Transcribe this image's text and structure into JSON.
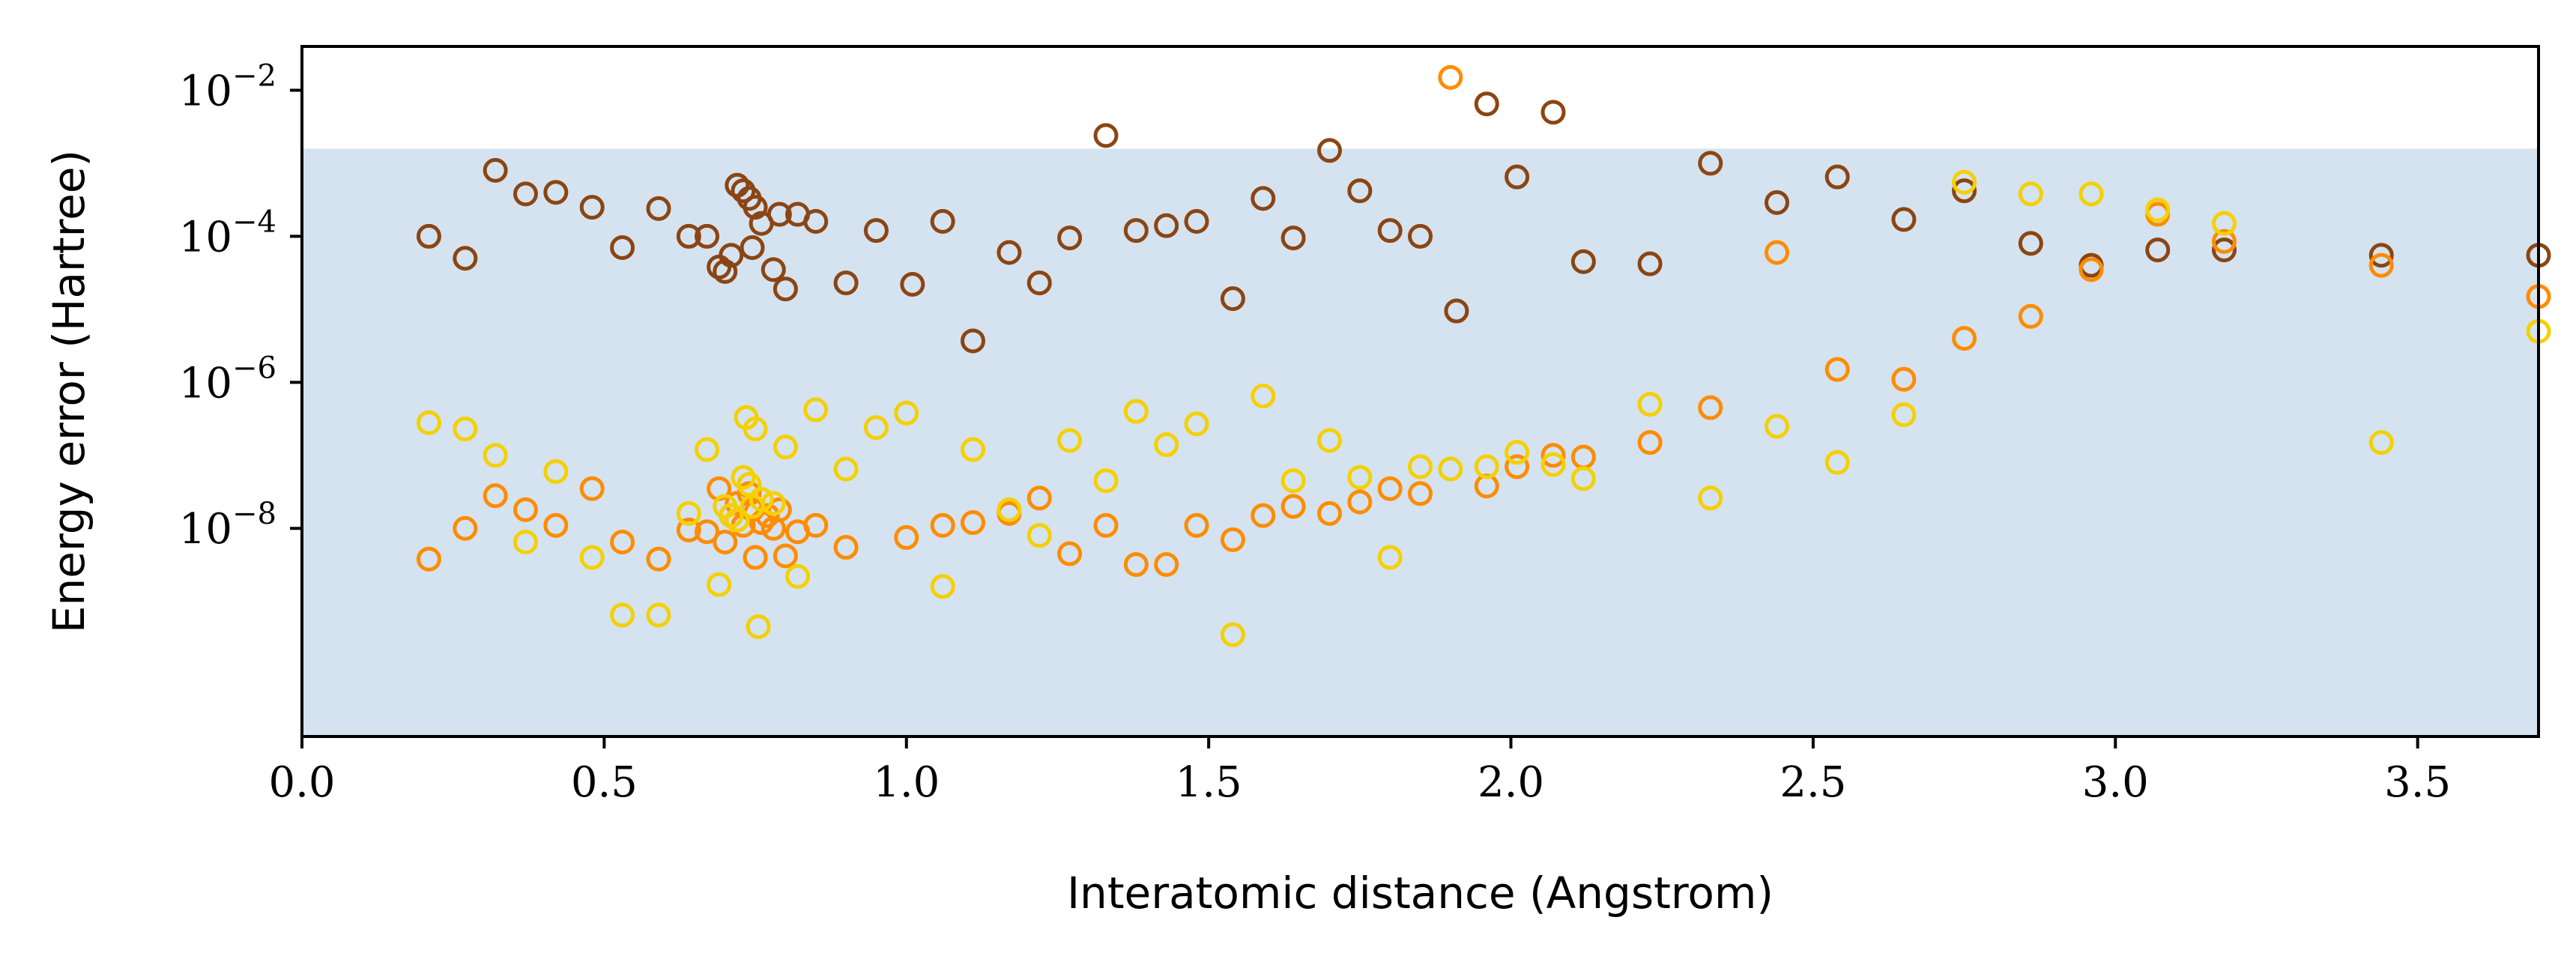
{
  "chart_data": {
    "type": "scatter",
    "title": "",
    "xlabel": "Interatomic distance (Angstrom)",
    "ylabel": "Energy error (Hartree)",
    "xlim": [
      0.0,
      3.7
    ],
    "ylim_log10": [
      -10.85,
      -1.4
    ],
    "yscale": "log",
    "x_ticks": [
      0.0,
      0.5,
      1.0,
      1.5,
      2.0,
      2.5,
      3.0,
      3.5
    ],
    "x_tick_labels": [
      "0.0",
      "0.5",
      "1.0",
      "1.5",
      "2.0",
      "2.5",
      "3.0",
      "3.5"
    ],
    "y_ticks_log10": [
      -2,
      -4,
      -6,
      -8
    ],
    "y_tick_labels": [
      "10^{-2}",
      "10^{-4}",
      "10^{-6}",
      "10^{-8}"
    ],
    "shaded_region": {
      "y_upper_log10": -2.8,
      "color": "#d4e3ef",
      "description": "chemical accuracy band"
    },
    "grid": false,
    "legend": "none",
    "series": [
      {
        "name": "series-brown",
        "color": "#8b4513",
        "marker": "hollow-circle",
        "points": [
          [
            0.21,
            0.0001
          ],
          [
            0.27,
            5e-05
          ],
          [
            0.32,
            0.0008
          ],
          [
            0.37,
            0.00038
          ],
          [
            0.42,
            0.0004
          ],
          [
            0.48,
            0.00025
          ],
          [
            0.53,
            7e-05
          ],
          [
            0.59,
            0.00024
          ],
          [
            0.64,
            0.0001
          ],
          [
            0.67,
            0.0001
          ],
          [
            0.69,
            3.8e-05
          ],
          [
            0.7,
            3.3e-05
          ],
          [
            0.71,
            5.5e-05
          ],
          [
            0.72,
            0.0005
          ],
          [
            0.73,
            0.00042
          ],
          [
            0.74,
            0.00033
          ],
          [
            0.745,
            7e-05
          ],
          [
            0.75,
            0.00025
          ],
          [
            0.76,
            0.00015
          ],
          [
            0.78,
            3.5e-05
          ],
          [
            0.79,
            0.0002
          ],
          [
            0.8,
            1.9e-05
          ],
          [
            0.82,
            0.0002
          ],
          [
            0.85,
            0.00016
          ],
          [
            0.9,
            2.3e-05
          ],
          [
            0.95,
            0.00012
          ],
          [
            1.01,
            2.2e-05
          ],
          [
            1.06,
            0.00016
          ],
          [
            1.11,
            3.7e-06
          ],
          [
            1.17,
            6e-05
          ],
          [
            1.22,
            2.3e-05
          ],
          [
            1.27,
            9.5e-05
          ],
          [
            1.33,
            0.0024
          ],
          [
            1.38,
            0.00012
          ],
          [
            1.43,
            0.00014
          ],
          [
            1.48,
            0.00016
          ],
          [
            1.54,
            1.4e-05
          ],
          [
            1.59,
            0.00033
          ],
          [
            1.64,
            9.5e-05
          ],
          [
            1.7,
            0.0015
          ],
          [
            1.75,
            0.00042
          ],
          [
            1.8,
            0.00012
          ],
          [
            1.85,
            0.0001
          ],
          [
            1.91,
            9.5e-06
          ],
          [
            1.96,
            0.0065
          ],
          [
            2.01,
            0.00065
          ],
          [
            2.07,
            0.005
          ],
          [
            2.12,
            4.5e-05
          ],
          [
            2.23,
            4.2e-05
          ],
          [
            2.33,
            0.001
          ],
          [
            2.44,
            0.00029
          ],
          [
            2.54,
            0.00065
          ],
          [
            2.65,
            0.00017
          ],
          [
            2.75,
            0.00042
          ],
          [
            2.86,
            8e-05
          ],
          [
            2.96,
            4e-05
          ],
          [
            3.07,
            6.5e-05
          ],
          [
            3.18,
            6.5e-05
          ],
          [
            3.44,
            5.5e-05
          ],
          [
            3.7,
            5.5e-05
          ]
        ]
      },
      {
        "name": "series-orange",
        "color": "#ff8c00",
        "marker": "hollow-circle",
        "points": [
          [
            0.21,
            3.8e-09
          ],
          [
            0.27,
            1e-08
          ],
          [
            0.32,
            2.8e-08
          ],
          [
            0.37,
            1.8e-08
          ],
          [
            0.42,
            1.1e-08
          ],
          [
            0.48,
            3.5e-08
          ],
          [
            0.53,
            6.5e-09
          ],
          [
            0.59,
            3.8e-09
          ],
          [
            0.64,
            9.5e-09
          ],
          [
            0.67,
            9e-09
          ],
          [
            0.69,
            3.5e-08
          ],
          [
            0.7,
            6.5e-09
          ],
          [
            0.71,
            1.5e-08
          ],
          [
            0.72,
            2.2e-08
          ],
          [
            0.73,
            1.1e-08
          ],
          [
            0.74,
            3e-08
          ],
          [
            0.745,
            1.8e-08
          ],
          [
            0.75,
            4e-09
          ],
          [
            0.76,
            1.2e-08
          ],
          [
            0.77,
            1.5e-08
          ],
          [
            0.78,
            1e-08
          ],
          [
            0.79,
            1.8e-08
          ],
          [
            0.8,
            4.2e-09
          ],
          [
            0.82,
            9e-09
          ],
          [
            0.85,
            1.1e-08
          ],
          [
            0.9,
            5.5e-09
          ],
          [
            1.0,
            7.5e-09
          ],
          [
            1.06,
            1.1e-08
          ],
          [
            1.11,
            1.2e-08
          ],
          [
            1.17,
            1.6e-08
          ],
          [
            1.22,
            2.6e-08
          ],
          [
            1.27,
            4.5e-09
          ],
          [
            1.33,
            1.1e-08
          ],
          [
            1.38,
            3.2e-09
          ],
          [
            1.43,
            3.2e-09
          ],
          [
            1.48,
            1.1e-08
          ],
          [
            1.54,
            7e-09
          ],
          [
            1.59,
            1.5e-08
          ],
          [
            1.64,
            2e-08
          ],
          [
            1.7,
            1.6e-08
          ],
          [
            1.75,
            2.3e-08
          ],
          [
            1.8,
            3.5e-08
          ],
          [
            1.85,
            3e-08
          ],
          [
            1.9,
            0.015
          ],
          [
            1.96,
            3.8e-08
          ],
          [
            2.01,
            7e-08
          ],
          [
            2.07,
            1e-07
          ],
          [
            2.12,
            9.5e-08
          ],
          [
            2.23,
            1.5e-07
          ],
          [
            2.33,
            4.5e-07
          ],
          [
            2.44,
            6e-05
          ],
          [
            2.54,
            1.5e-06
          ],
          [
            2.65,
            1.1e-06
          ],
          [
            2.75,
            4e-06
          ],
          [
            2.86,
            8e-06
          ],
          [
            2.96,
            3.5e-05
          ],
          [
            3.07,
            0.0002
          ],
          [
            3.18,
            8.5e-05
          ],
          [
            3.44,
            4e-05
          ],
          [
            3.7,
            1.5e-05
          ]
        ]
      },
      {
        "name": "series-yellow",
        "color": "#f5d000",
        "marker": "hollow-circle",
        "points": [
          [
            0.21,
            2.8e-07
          ],
          [
            0.27,
            2.3e-07
          ],
          [
            0.32,
            1e-07
          ],
          [
            0.37,
            6.5e-09
          ],
          [
            0.42,
            6e-08
          ],
          [
            0.48,
            4e-09
          ],
          [
            0.53,
            6.5e-10
          ],
          [
            0.59,
            6.5e-10
          ],
          [
            0.64,
            1.6e-08
          ],
          [
            0.67,
            1.2e-07
          ],
          [
            0.69,
            1.7e-09
          ],
          [
            0.7,
            2e-08
          ],
          [
            0.71,
            1.5e-08
          ],
          [
            0.72,
            1.3e-08
          ],
          [
            0.73,
            5e-08
          ],
          [
            0.735,
            3.3e-07
          ],
          [
            0.74,
            4e-08
          ],
          [
            0.745,
            2e-08
          ],
          [
            0.75,
            2.3e-07
          ],
          [
            0.755,
            4.5e-10
          ],
          [
            0.76,
            2.5e-08
          ],
          [
            0.78,
            2.2e-08
          ],
          [
            0.8,
            1.3e-07
          ],
          [
            0.82,
            2.2e-09
          ],
          [
            0.85,
            4.2e-07
          ],
          [
            0.9,
            6.5e-08
          ],
          [
            0.95,
            2.4e-07
          ],
          [
            1.0,
            3.8e-07
          ],
          [
            1.06,
            1.6e-09
          ],
          [
            1.11,
            1.2e-07
          ],
          [
            1.17,
            1.8e-08
          ],
          [
            1.22,
            8e-09
          ],
          [
            1.27,
            1.6e-07
          ],
          [
            1.33,
            4.5e-08
          ],
          [
            1.38,
            4e-07
          ],
          [
            1.43,
            1.4e-07
          ],
          [
            1.48,
            2.7e-07
          ],
          [
            1.54,
            3.5e-10
          ],
          [
            1.59,
            6.5e-07
          ],
          [
            1.64,
            4.5e-08
          ],
          [
            1.7,
            1.6e-07
          ],
          [
            1.75,
            5e-08
          ],
          [
            1.8,
            4e-09
          ],
          [
            1.85,
            7e-08
          ],
          [
            1.9,
            6.5e-08
          ],
          [
            1.96,
            7e-08
          ],
          [
            2.01,
            1.1e-07
          ],
          [
            2.07,
            7.5e-08
          ],
          [
            2.12,
            4.8e-08
          ],
          [
            2.23,
            5e-07
          ],
          [
            2.33,
            2.6e-08
          ],
          [
            2.44,
            2.5e-07
          ],
          [
            2.54,
            8e-08
          ],
          [
            2.65,
            3.6e-07
          ],
          [
            2.75,
            0.00055
          ],
          [
            2.86,
            0.00038
          ],
          [
            2.96,
            0.00038
          ],
          [
            3.07,
            0.00023
          ],
          [
            3.18,
            0.00015
          ],
          [
            3.44,
            1.5e-07
          ],
          [
            3.7,
            5e-06
          ]
        ]
      }
    ]
  }
}
